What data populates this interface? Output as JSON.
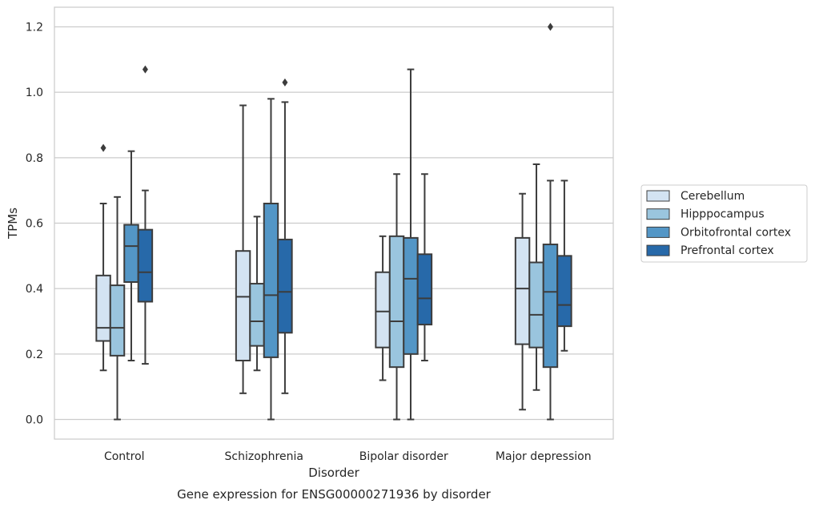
{
  "chart_data": {
    "type": "box",
    "caption": "Gene expression for ENSG00000271936 by disorder",
    "xlabel": "Disorder",
    "ylabel": "TPMs",
    "ylim": [
      -0.06,
      1.26
    ],
    "yticks": [
      0.0,
      0.2,
      0.4,
      0.6,
      0.8,
      1.0,
      1.2
    ],
    "ytick_labels": [
      "0.0",
      "0.2",
      "0.4",
      "0.6",
      "0.8",
      "1.0",
      "1.2"
    ],
    "grid": "horizontal",
    "legend_position": "right",
    "categories": [
      "Control",
      "Schizophrenia",
      "Bipolar disorder",
      "Major depression"
    ],
    "series": [
      {
        "name": "Cerebellum",
        "color": "#d3e3f2",
        "boxes": [
          {
            "whisker_low": 0.15,
            "q1": 0.24,
            "median": 0.28,
            "q3": 0.44,
            "whisker_high": 0.66,
            "outliers": [
              0.83
            ]
          },
          {
            "whisker_low": 0.08,
            "q1": 0.18,
            "median": 0.375,
            "q3": 0.515,
            "whisker_high": 0.96,
            "outliers": []
          },
          {
            "whisker_low": 0.12,
            "q1": 0.22,
            "median": 0.33,
            "q3": 0.45,
            "whisker_high": 0.56,
            "outliers": []
          },
          {
            "whisker_low": 0.03,
            "q1": 0.23,
            "median": 0.4,
            "q3": 0.555,
            "whisker_high": 0.69,
            "outliers": []
          }
        ]
      },
      {
        "name": "Hipppocampus",
        "color": "#9ac5de",
        "boxes": [
          {
            "whisker_low": 0.0,
            "q1": 0.195,
            "median": 0.28,
            "q3": 0.41,
            "whisker_high": 0.68,
            "outliers": []
          },
          {
            "whisker_low": 0.15,
            "q1": 0.225,
            "median": 0.3,
            "q3": 0.415,
            "whisker_high": 0.62,
            "outliers": []
          },
          {
            "whisker_low": 0.0,
            "q1": 0.16,
            "median": 0.3,
            "q3": 0.56,
            "whisker_high": 0.75,
            "outliers": []
          },
          {
            "whisker_low": 0.09,
            "q1": 0.22,
            "median": 0.32,
            "q3": 0.48,
            "whisker_high": 0.78,
            "outliers": []
          }
        ]
      },
      {
        "name": "Orbitofrontal cortex",
        "color": "#5396c6",
        "boxes": [
          {
            "whisker_low": 0.18,
            "q1": 0.42,
            "median": 0.53,
            "q3": 0.595,
            "whisker_high": 0.82,
            "outliers": []
          },
          {
            "whisker_low": 0.0,
            "q1": 0.19,
            "median": 0.38,
            "q3": 0.66,
            "whisker_high": 0.98,
            "outliers": []
          },
          {
            "whisker_low": 0.0,
            "q1": 0.2,
            "median": 0.43,
            "q3": 0.555,
            "whisker_high": 1.07,
            "outliers": []
          },
          {
            "whisker_low": 0.0,
            "q1": 0.16,
            "median": 0.39,
            "q3": 0.535,
            "whisker_high": 0.73,
            "outliers": [
              1.2
            ]
          }
        ]
      },
      {
        "name": "Prefrontal cortex",
        "color": "#2769a9",
        "boxes": [
          {
            "whisker_low": 0.17,
            "q1": 0.36,
            "median": 0.45,
            "q3": 0.58,
            "whisker_high": 0.7,
            "outliers": [
              1.07
            ]
          },
          {
            "whisker_low": 0.08,
            "q1": 0.265,
            "median": 0.39,
            "q3": 0.55,
            "whisker_high": 0.97,
            "outliers": [
              1.03
            ]
          },
          {
            "whisker_low": 0.18,
            "q1": 0.29,
            "median": 0.37,
            "q3": 0.505,
            "whisker_high": 0.75,
            "outliers": []
          },
          {
            "whisker_low": 0.21,
            "q1": 0.285,
            "median": 0.35,
            "q3": 0.5,
            "whisker_high": 0.73,
            "outliers": []
          }
        ]
      }
    ]
  }
}
